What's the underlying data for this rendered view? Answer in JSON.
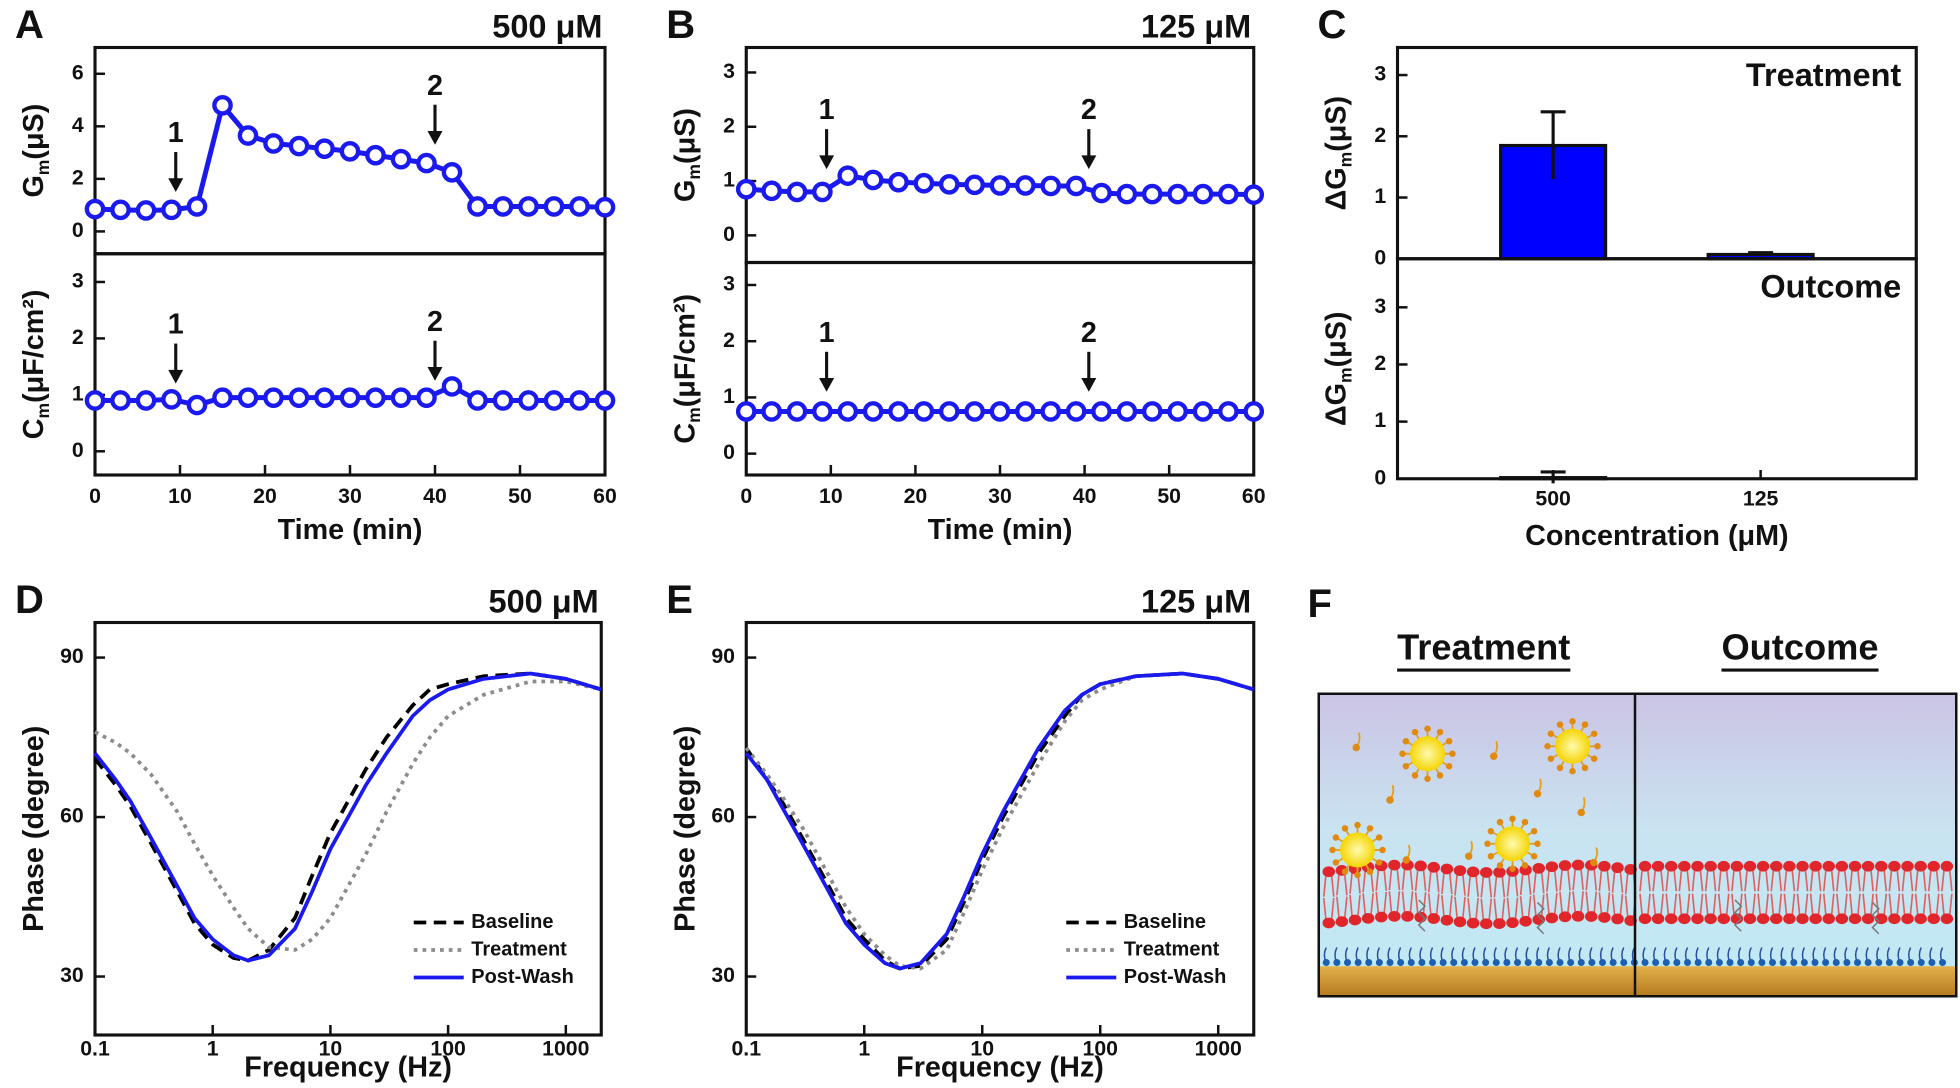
{
  "chart_data": [
    {
      "type": "line",
      "panel": "A",
      "title": "500 μM",
      "xlabel": "Time (min)",
      "x": [
        0,
        3,
        6,
        9,
        12,
        15,
        18,
        21,
        24,
        27,
        30,
        33,
        36,
        39,
        42,
        45,
        48,
        51,
        54,
        57,
        60
      ],
      "xlim": [
        0,
        60
      ],
      "xticks": [
        0,
        10,
        20,
        30,
        40,
        50,
        60
      ],
      "panels": [
        {
          "ylabel": {
            "base": "G",
            "sub": "m",
            "unit": "(μS)"
          },
          "ylim": [
            -0.85,
            7
          ],
          "yticks": [
            0,
            2,
            4,
            6
          ],
          "series": [
            {
              "color": "#1a1aef",
              "marker": "circle",
              "values": [
                0.85,
                0.82,
                0.8,
                0.82,
                0.95,
                4.8,
                3.65,
                3.35,
                3.25,
                3.15,
                3.05,
                2.9,
                2.75,
                2.6,
                2.25,
                0.95,
                0.95,
                0.95,
                0.95,
                0.95,
                0.92
              ]
            }
          ],
          "annotations": [
            {
              "x": 9.5,
              "y": 1.5,
              "label": "1"
            },
            {
              "x": 40,
              "y": 3.3,
              "label": "2"
            }
          ]
        },
        {
          "ylabel": {
            "base": "C",
            "sub": "m",
            "unit": "(μF/cm²)"
          },
          "ylim": [
            -0.42,
            3.5
          ],
          "yticks": [
            0,
            1,
            2,
            3
          ],
          "series": [
            {
              "color": "#1a1aef",
              "marker": "circle",
              "values": [
                0.9,
                0.9,
                0.9,
                0.92,
                0.82,
                0.95,
                0.95,
                0.95,
                0.95,
                0.95,
                0.95,
                0.95,
                0.95,
                0.95,
                1.15,
                0.9,
                0.9,
                0.9,
                0.9,
                0.9,
                0.9
              ]
            }
          ],
          "annotations": [
            {
              "x": 9.5,
              "y": 1.2,
              "label": "1"
            },
            {
              "x": 40,
              "y": 1.25,
              "label": "2"
            }
          ]
        }
      ]
    },
    {
      "type": "line",
      "panel": "B",
      "title": "125 μM",
      "xlabel": "Time (min)",
      "x": [
        0,
        3,
        6,
        9,
        12,
        15,
        18,
        21,
        24,
        27,
        30,
        33,
        36,
        39,
        42,
        45,
        48,
        51,
        54,
        57,
        60
      ],
      "xlim": [
        0,
        60
      ],
      "xticks": [
        0,
        10,
        20,
        30,
        40,
        50,
        60
      ],
      "panels": [
        {
          "ylabel": {
            "base": "G",
            "sub": "m",
            "unit": "(μS)"
          },
          "ylim": [
            -0.5,
            3.46
          ],
          "yticks": [
            0,
            1,
            2,
            3
          ],
          "series": [
            {
              "color": "#1a1aef",
              "marker": "circle",
              "values": [
                0.85,
                0.82,
                0.8,
                0.8,
                1.1,
                1.02,
                0.98,
                0.96,
                0.94,
                0.93,
                0.92,
                0.92,
                0.91,
                0.91,
                0.78,
                0.76,
                0.76,
                0.76,
                0.76,
                0.76,
                0.75
              ]
            }
          ],
          "annotations": [
            {
              "x": 9.5,
              "y": 1.22,
              "label": "1"
            },
            {
              "x": 40.5,
              "y": 1.22,
              "label": "2"
            }
          ]
        },
        {
          "ylabel": {
            "base": "C",
            "sub": "m",
            "unit": "(μF/cm²)"
          },
          "ylim": [
            -0.38,
            3.4
          ],
          "yticks": [
            0,
            1,
            2,
            3
          ],
          "series": [
            {
              "color": "#1a1aef",
              "marker": "circle",
              "values": [
                0.75,
                0.75,
                0.75,
                0.75,
                0.75,
                0.75,
                0.75,
                0.75,
                0.75,
                0.75,
                0.75,
                0.75,
                0.75,
                0.75,
                0.75,
                0.75,
                0.75,
                0.75,
                0.75,
                0.75,
                0.75
              ]
            }
          ],
          "annotations": [
            {
              "x": 9.5,
              "y": 1.1,
              "label": "1"
            },
            {
              "x": 40.5,
              "y": 1.1,
              "label": "2"
            }
          ]
        }
      ]
    },
    {
      "type": "bar",
      "panel": "C",
      "xlabel": "Concentration (μM)",
      "categories": [
        "500",
        "125"
      ],
      "panels": [
        {
          "label": "Treatment",
          "ylabel": {
            "base": "ΔG",
            "sub": "m",
            "unit": "(μS)"
          },
          "ylim": [
            0,
            3.45
          ],
          "yticks": [
            0,
            1,
            2,
            3
          ],
          "color": "#0000ff",
          "values": [
            1.85,
            0.07
          ],
          "errors": [
            0.55,
            0.03
          ]
        },
        {
          "label": "Outcome",
          "ylabel": {
            "base": "ΔG",
            "sub": "m",
            "unit": "(μS)"
          },
          "ylim": [
            0,
            3.85
          ],
          "yticks": [
            0,
            1,
            2,
            3
          ],
          "color": "#0000ff",
          "values": [
            0.02,
            0
          ],
          "errors": [
            0.1,
            0
          ]
        }
      ]
    },
    {
      "type": "line",
      "panel": "D",
      "title": "500 μM",
      "xlabel": "Frequency (Hz)",
      "xscale": "log",
      "legend": "lower right",
      "x": [
        0.1,
        0.15,
        0.2,
        0.3,
        0.5,
        0.7,
        1,
        1.5,
        2,
        3,
        5,
        7,
        10,
        15,
        20,
        30,
        50,
        70,
        100,
        200,
        500,
        1000,
        2000
      ],
      "xlim": [
        0.1,
        2000
      ],
      "xticks": [
        0.1,
        1,
        10,
        100,
        1000
      ],
      "panels": [
        {
          "ylabel": {
            "base": "Phase (degree)"
          },
          "ylim": [
            19,
            96.6
          ],
          "yticks": [
            30,
            60,
            90
          ],
          "series": [
            {
              "name": "Baseline",
              "color": "#000000",
              "dash": "dashed",
              "values": [
                71,
                66,
                62,
                55,
                46,
                40,
                36,
                33.5,
                33,
                35,
                41,
                49,
                57,
                64,
                69,
                75,
                81,
                84,
                85,
                86.5,
                87,
                86,
                84
              ]
            },
            {
              "name": "Treatment",
              "color": "#8c8c8c",
              "dash": "dotted",
              "values": [
                76,
                74,
                72,
                68,
                61,
                55,
                49,
                43,
                39,
                35.5,
                35,
                37,
                41,
                48,
                53,
                61,
                70,
                75,
                79,
                83,
                85.5,
                85.5,
                84
              ]
            },
            {
              "name": "Post-Wash",
              "color": "#1a1aef",
              "dash": "solid",
              "values": [
                72,
                67,
                63,
                56,
                47,
                41,
                37,
                34,
                33,
                34,
                39,
                46,
                54,
                61,
                66,
                72,
                79,
                82,
                84,
                86,
                87,
                86,
                84
              ]
            }
          ]
        }
      ]
    },
    {
      "type": "line",
      "panel": "E",
      "title": "125 μM",
      "xlabel": "Frequency (Hz)",
      "xscale": "log",
      "legend": "lower right",
      "x": [
        0.1,
        0.15,
        0.2,
        0.3,
        0.5,
        0.7,
        1,
        1.5,
        2,
        3,
        5,
        7,
        10,
        15,
        20,
        30,
        50,
        70,
        100,
        200,
        500,
        1000,
        2000
      ],
      "xlim": [
        0.1,
        2000
      ],
      "xticks": [
        0.1,
        1,
        10,
        100,
        1000
      ],
      "panels": [
        {
          "ylabel": {
            "base": "Phase (degree)"
          },
          "ylim": [
            19,
            96.6
          ],
          "yticks": [
            30,
            60,
            90
          ],
          "series": [
            {
              "name": "Baseline",
              "color": "#000000",
              "dash": "dashed",
              "values": [
                73,
                67,
                63,
                56,
                47,
                41,
                37,
                33,
                31.5,
                32,
                37,
                44,
                52,
                60,
                65,
                72,
                79,
                83,
                85,
                86.5,
                87,
                86,
                84
              ]
            },
            {
              "name": "Treatment",
              "color": "#8c8c8c",
              "dash": "dotted",
              "values": [
                73,
                68,
                64,
                58,
                49,
                43,
                38,
                34,
                32,
                31.5,
                35,
                42,
                50,
                58,
                63,
                70,
                78,
                82,
                84,
                86.5,
                87,
                86,
                84
              ]
            },
            {
              "name": "Post-Wash",
              "color": "#1a1aef",
              "dash": "solid",
              "values": [
                72,
                67,
                62,
                55,
                46,
                40,
                36,
                32.5,
                31.5,
                32.5,
                38,
                45,
                53,
                61,
                66,
                73,
                80,
                83,
                85,
                86.5,
                87,
                86,
                84
              ]
            }
          ]
        }
      ]
    }
  ],
  "diagram": {
    "panel": "F",
    "headings": [
      "Treatment",
      "Outcome"
    ]
  }
}
